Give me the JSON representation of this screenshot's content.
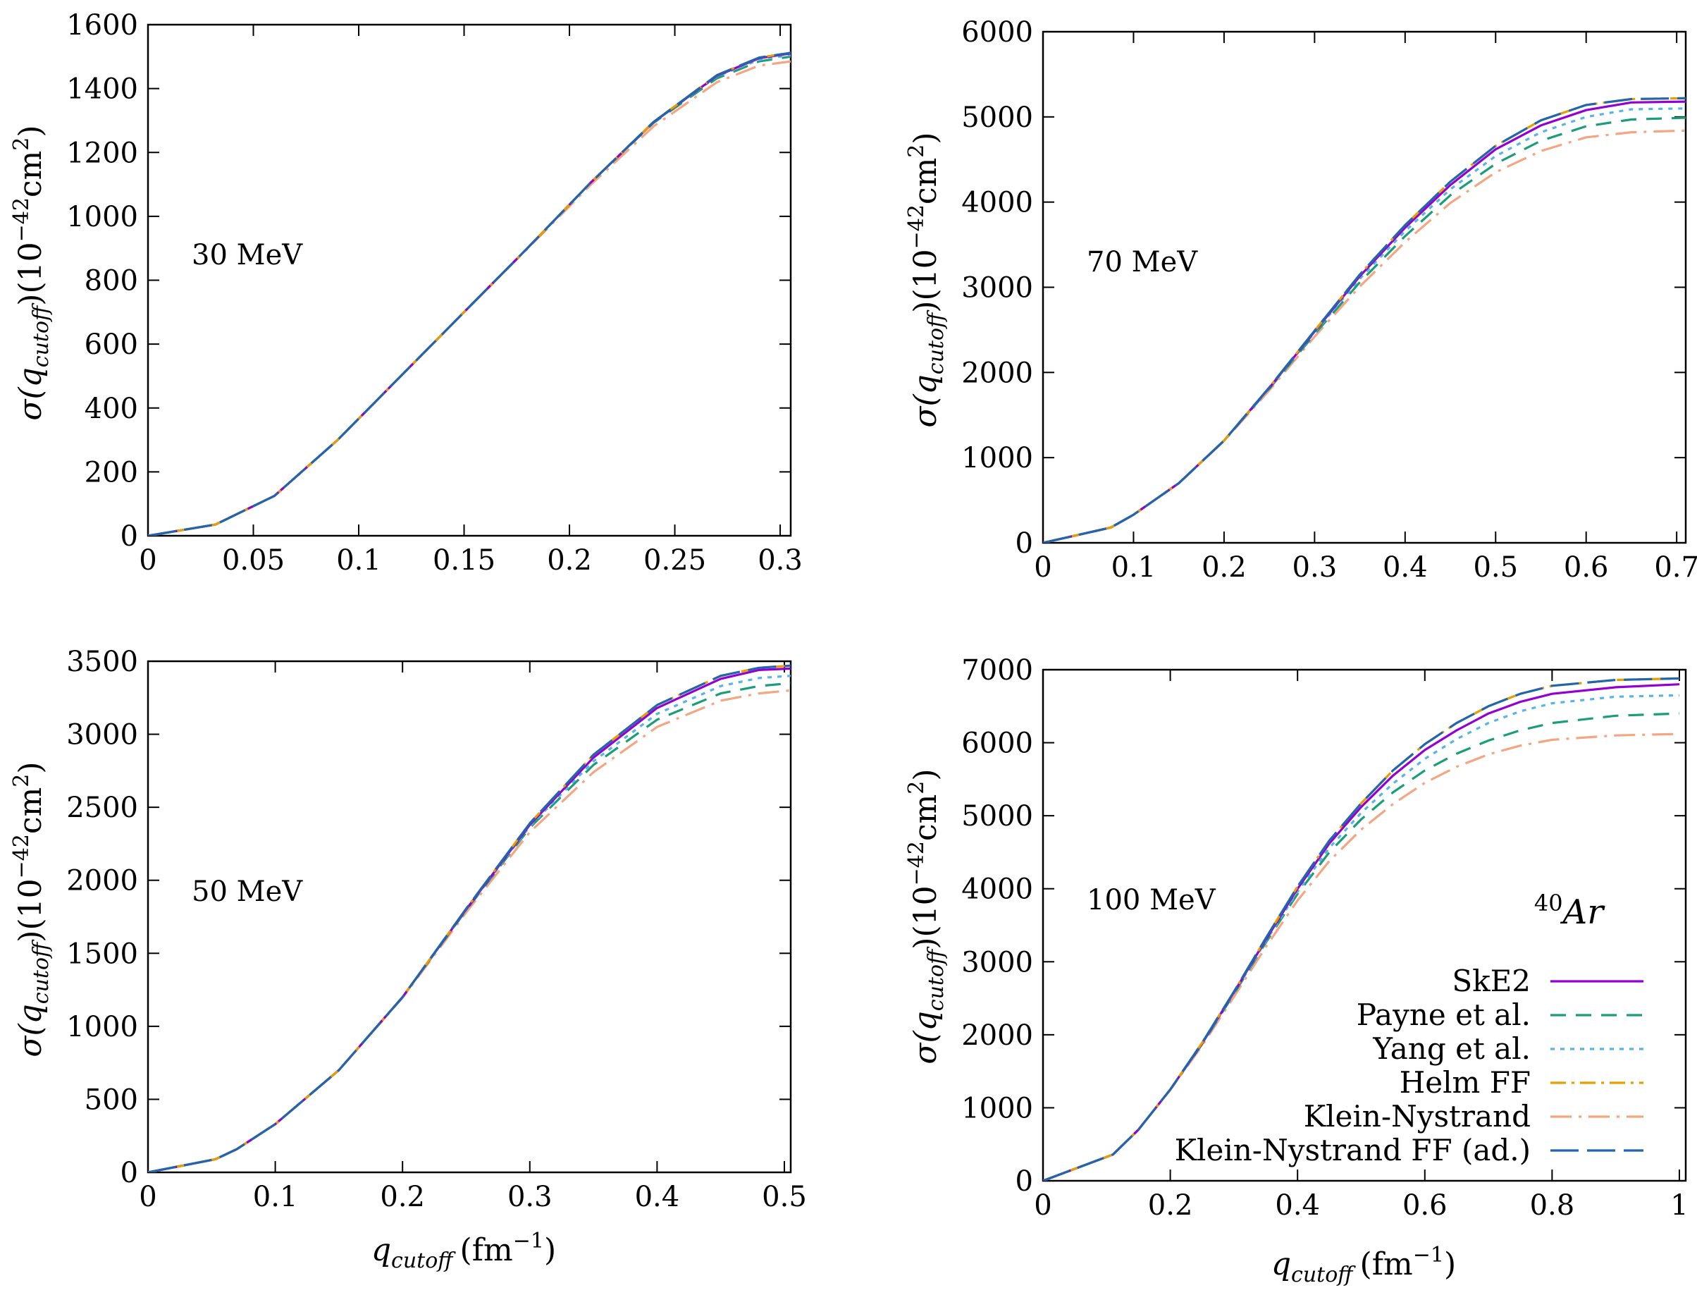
{
  "figure": {
    "x_axis_label_main": "q",
    "x_axis_label_sub": "cutoff",
    "x_axis_label_unit": "(fm",
    "x_axis_label_exp": "−1",
    "x_axis_label_close": ")",
    "y_axis_label_sigma": "σ(q",
    "y_axis_label_sub": "cutoff",
    "y_axis_label_mid": ")(10",
    "y_axis_label_exp": "−42",
    "y_axis_label_cm": "cm",
    "y_axis_label_cm_exp": "2",
    "y_axis_label_close": ")"
  },
  "legend": {
    "nucleus_mass": "40",
    "nucleus_symbol": "Ar",
    "entries": [
      {
        "label": "SkE2",
        "color": "#9400d3",
        "dash": ""
      },
      {
        "label": "Payne et al.",
        "color": "#1a9e77",
        "dash": "22,14"
      },
      {
        "label": "Yang et al.",
        "color": "#56b4e9",
        "dash": "6,8"
      },
      {
        "label": "Helm FF",
        "color": "#e69f00",
        "dash": "22,8,4,8"
      },
      {
        "label": "Klein-Nystrand",
        "color": "#f4a582",
        "dash": "30,10,4,10"
      },
      {
        "label": "Klein-Nystrand FF (ad.)",
        "color": "#2166ac",
        "dash": "40,12"
      }
    ]
  },
  "chart_data": [
    {
      "type": "line",
      "annotation": "30 MeV",
      "xlabel": "",
      "ylabel": "σ(q_cutoff)(10^-42 cm^2)",
      "xlim": [
        0,
        0.305
      ],
      "ylim": [
        0,
        1600
      ],
      "xticks": [
        0,
        0.05,
        0.1,
        0.15,
        0.2,
        0.25,
        0.3
      ],
      "xtick_labels": [
        "0",
        "0.05",
        "0.1",
        "0.15",
        "0.2",
        "0.25",
        "0.3"
      ],
      "yticks": [
        0,
        200,
        400,
        600,
        800,
        1000,
        1200,
        1400,
        1600
      ],
      "ytick_labels": [
        "0",
        "200",
        "400",
        "600",
        "800",
        "1000",
        "1200",
        "1400",
        "1600"
      ],
      "x": [
        0,
        0.032,
        0.06,
        0.09,
        0.12,
        0.15,
        0.18,
        0.21,
        0.24,
        0.27,
        0.29,
        0.305
      ],
      "series": [
        {
          "name": "SkE2",
          "values": [
            0,
            35,
            125,
            300,
            500,
            700,
            900,
            1105,
            1295,
            1440,
            1495,
            1510
          ]
        },
        {
          "name": "Payne et al.",
          "values": [
            0,
            35,
            125,
            300,
            500,
            700,
            900,
            1105,
            1293,
            1432,
            1485,
            1500
          ]
        },
        {
          "name": "Yang et al.",
          "values": [
            0,
            35,
            125,
            300,
            500,
            700,
            900,
            1105,
            1295,
            1438,
            1490,
            1505
          ]
        },
        {
          "name": "Helm FF",
          "values": [
            0,
            35,
            125,
            300,
            500,
            700,
            900,
            1105,
            1296,
            1442,
            1497,
            1512
          ]
        },
        {
          "name": "Klein-Nystrand",
          "values": [
            0,
            35,
            125,
            300,
            500,
            700,
            898,
            1098,
            1282,
            1420,
            1472,
            1485
          ]
        },
        {
          "name": "Klein-Nystrand FF (ad.)",
          "values": [
            0,
            35,
            125,
            300,
            500,
            700,
            900,
            1105,
            1296,
            1442,
            1497,
            1512
          ]
        }
      ]
    },
    {
      "type": "line",
      "annotation": "70 MeV",
      "xlabel": "",
      "ylabel": "σ(q_cutoff)(10^-42 cm^2)",
      "xlim": [
        0,
        0.71
      ],
      "ylim": [
        0,
        6000
      ],
      "xticks": [
        0,
        0.1,
        0.2,
        0.3,
        0.4,
        0.5,
        0.6,
        0.7
      ],
      "xtick_labels": [
        "0",
        "0.1",
        "0.2",
        "0.3",
        "0.4",
        "0.5",
        "0.6",
        "0.7"
      ],
      "yticks": [
        0,
        1000,
        2000,
        3000,
        4000,
        5000,
        6000
      ],
      "ytick_labels": [
        "0",
        "1000",
        "2000",
        "3000",
        "4000",
        "5000",
        "6000"
      ],
      "x": [
        0,
        0.075,
        0.1,
        0.15,
        0.2,
        0.25,
        0.3,
        0.35,
        0.4,
        0.45,
        0.5,
        0.55,
        0.6,
        0.65,
        0.71
      ],
      "series": [
        {
          "name": "SkE2",
          "values": [
            0,
            180,
            330,
            700,
            1200,
            1820,
            2480,
            3130,
            3700,
            4200,
            4620,
            4900,
            5080,
            5170,
            5180
          ]
        },
        {
          "name": "Payne et al.",
          "values": [
            0,
            180,
            330,
            700,
            1200,
            1810,
            2450,
            3060,
            3600,
            4080,
            4450,
            4720,
            4890,
            4970,
            4990
          ]
        },
        {
          "name": "Yang et al.",
          "values": [
            0,
            180,
            330,
            700,
            1200,
            1815,
            2470,
            3100,
            3660,
            4150,
            4540,
            4820,
            5000,
            5090,
            5100
          ]
        },
        {
          "name": "Helm FF",
          "values": [
            0,
            180,
            330,
            700,
            1200,
            1825,
            2490,
            3150,
            3730,
            4240,
            4660,
            4960,
            5140,
            5210,
            5220
          ]
        },
        {
          "name": "Klein-Nystrand",
          "values": [
            0,
            180,
            330,
            700,
            1195,
            1790,
            2420,
            3010,
            3530,
            3990,
            4350,
            4600,
            4760,
            4820,
            4840
          ]
        },
        {
          "name": "Klein-Nystrand FF (ad.)",
          "values": [
            0,
            180,
            330,
            700,
            1200,
            1825,
            2490,
            3150,
            3730,
            4240,
            4660,
            4960,
            5140,
            5210,
            5220
          ]
        }
      ]
    },
    {
      "type": "line",
      "annotation": "50 MeV",
      "xlabel": "q_cutoff (fm^-1)",
      "ylabel": "σ(q_cutoff)(10^-42 cm^2)",
      "xlim": [
        0,
        0.505
      ],
      "ylim": [
        0,
        3500
      ],
      "xticks": [
        0,
        0.1,
        0.2,
        0.3,
        0.4,
        0.5
      ],
      "xtick_labels": [
        "0",
        "0.1",
        "0.2",
        "0.3",
        "0.4",
        "0.5"
      ],
      "yticks": [
        0,
        500,
        1000,
        1500,
        2000,
        2500,
        3000,
        3500
      ],
      "ytick_labels": [
        "0",
        "500",
        "1000",
        "1500",
        "2000",
        "2500",
        "3000",
        "3500"
      ],
      "x": [
        0,
        0.053,
        0.07,
        0.1,
        0.15,
        0.2,
        0.25,
        0.3,
        0.35,
        0.4,
        0.45,
        0.48,
        0.505
      ],
      "series": [
        {
          "name": "SkE2",
          "values": [
            0,
            90,
            160,
            330,
            700,
            1200,
            1800,
            2380,
            2840,
            3180,
            3380,
            3440,
            3450
          ]
        },
        {
          "name": "Payne et al.",
          "values": [
            0,
            90,
            160,
            330,
            700,
            1200,
            1795,
            2360,
            2790,
            3100,
            3280,
            3330,
            3350
          ]
        },
        {
          "name": "Yang et al.",
          "values": [
            0,
            90,
            160,
            330,
            700,
            1200,
            1798,
            2370,
            2815,
            3140,
            3330,
            3385,
            3400
          ]
        },
        {
          "name": "Helm FF",
          "values": [
            0,
            90,
            160,
            330,
            700,
            1200,
            1805,
            2390,
            2860,
            3200,
            3400,
            3455,
            3470
          ]
        },
        {
          "name": "Klein-Nystrand",
          "values": [
            0,
            90,
            160,
            330,
            700,
            1195,
            1780,
            2330,
            2740,
            3050,
            3230,
            3280,
            3300
          ]
        },
        {
          "name": "Klein-Nystrand FF (ad.)",
          "values": [
            0,
            90,
            160,
            330,
            700,
            1200,
            1805,
            2390,
            2860,
            3200,
            3400,
            3455,
            3470
          ]
        }
      ]
    },
    {
      "type": "line",
      "annotation": "100 MeV",
      "xlabel": "q_cutoff (fm^-1)",
      "ylabel": "σ(q_cutoff)(10^-42 cm^2)",
      "xlim": [
        0,
        1.01
      ],
      "ylim": [
        0,
        7000
      ],
      "xticks": [
        0,
        0.2,
        0.4,
        0.6,
        0.8,
        1.0
      ],
      "xtick_labels": [
        "0",
        "0.2",
        "0.4",
        "0.6",
        "0.8",
        "1"
      ],
      "yticks": [
        0,
        1000,
        2000,
        3000,
        4000,
        5000,
        6000,
        7000
      ],
      "ytick_labels": [
        "0",
        "1000",
        "2000",
        "3000",
        "4000",
        "5000",
        "6000",
        "7000"
      ],
      "x": [
        0,
        0.11,
        0.15,
        0.2,
        0.25,
        0.3,
        0.35,
        0.4,
        0.45,
        0.5,
        0.55,
        0.6,
        0.65,
        0.7,
        0.75,
        0.8,
        0.9,
        1.0
      ],
      "series": [
        {
          "name": "SkE2",
          "values": [
            0,
            360,
            700,
            1250,
            1880,
            2580,
            3300,
            4000,
            4620,
            5120,
            5550,
            5900,
            6170,
            6400,
            6560,
            6670,
            6760,
            6800
          ]
        },
        {
          "name": "Payne et al.",
          "values": [
            0,
            360,
            700,
            1250,
            1870,
            2560,
            3260,
            3930,
            4500,
            4950,
            5320,
            5620,
            5850,
            6030,
            6170,
            6270,
            6370,
            6400
          ]
        },
        {
          "name": "Yang et al.",
          "values": [
            0,
            360,
            700,
            1250,
            1875,
            2570,
            3280,
            3960,
            4560,
            5040,
            5440,
            5780,
            6050,
            6270,
            6430,
            6540,
            6630,
            6650
          ]
        },
        {
          "name": "Helm FF",
          "values": [
            0,
            360,
            700,
            1250,
            1890,
            2590,
            3320,
            4030,
            4660,
            5170,
            5620,
            5980,
            6270,
            6500,
            6670,
            6780,
            6860,
            6880
          ]
        },
        {
          "name": "Klein-Nystrand",
          "values": [
            0,
            360,
            700,
            1245,
            1850,
            2520,
            3200,
            3840,
            4380,
            4810,
            5160,
            5450,
            5670,
            5840,
            5960,
            6040,
            6100,
            6120
          ]
        },
        {
          "name": "Klein-Nystrand FF (ad.)",
          "values": [
            0,
            360,
            700,
            1250,
            1890,
            2590,
            3320,
            4030,
            4660,
            5170,
            5620,
            5980,
            6270,
            6500,
            6670,
            6780,
            6860,
            6880
          ]
        }
      ]
    }
  ]
}
